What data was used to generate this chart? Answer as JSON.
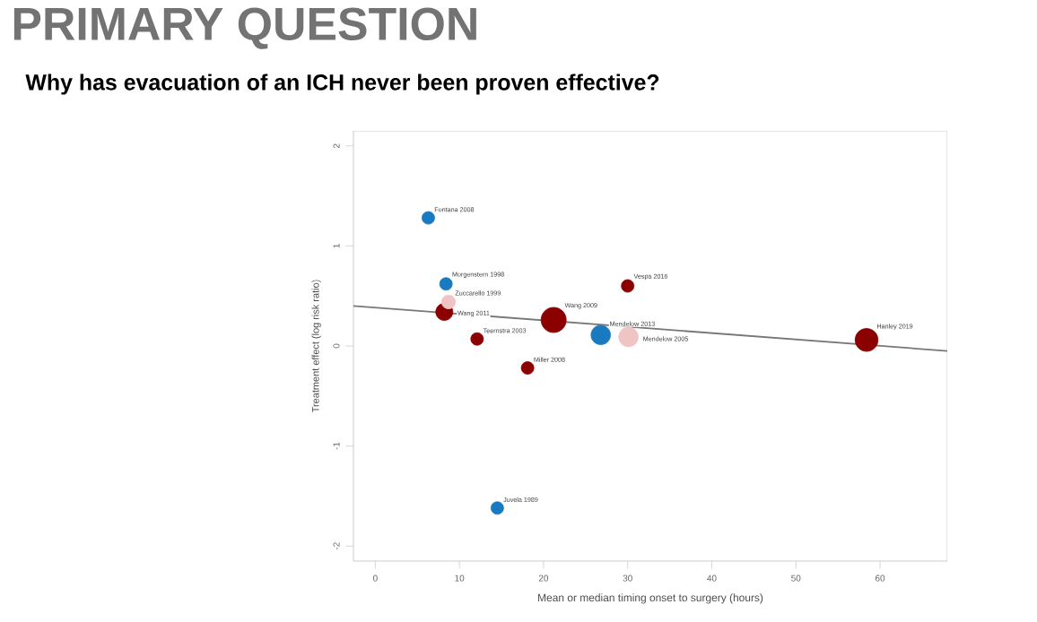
{
  "chart_data": {
    "type": "bubble",
    "title": "PRIMARY QUESTION",
    "subtitle": "Why has evacuation of an ICH never been proven effective?",
    "xlabel": "Mean or median timing onset to surgery (hours)",
    "ylabel": "Treatment effect (log risk ratio)",
    "xlim": [
      -2.6,
      68
    ],
    "ylim": [
      -2.15,
      2.15
    ],
    "xticks": [
      0,
      10,
      20,
      30,
      40,
      50,
      60
    ],
    "yticks": [
      -2,
      -1,
      0,
      1,
      2
    ],
    "series": [
      {
        "color": "#1a7abf",
        "x": [
          6.3,
          8.4,
          14.5,
          26.8
        ],
        "values": [
          1.28,
          0.62,
          -1.62,
          0.11
        ],
        "sizes": [
          0.25,
          0.25,
          0.25,
          0.6
        ]
      },
      {
        "color": "#8b0000",
        "x": [
          8.2,
          12.1,
          21.2,
          18.1,
          30.0,
          58.4
        ],
        "values": [
          0.34,
          0.07,
          0.26,
          -0.22,
          0.6,
          0.06
        ],
        "sizes": [
          0.46,
          0.25,
          1,
          0.25,
          0.25,
          0.83
        ]
      },
      {
        "color": "#f0c4c4",
        "x": [
          8.7,
          30.1
        ],
        "values": [
          0.44,
          0.09
        ],
        "sizes": [
          0.3,
          0.6
        ]
      },
      {
        "type": "line",
        "color": "#777777",
        "x": [
          -2.6,
          68
        ],
        "values": [
          0.4,
          -0.05
        ]
      }
    ],
    "annotations": [
      {
        "text": "Fontana 2008",
        "x": 6.3,
        "y": 1.28
      },
      {
        "text": "Morgenstern 1998",
        "x": 8.4,
        "y": 0.62
      },
      {
        "text": "Zuccarello 1999",
        "x": 8.7,
        "y": 0.44
      },
      {
        "text": "Wang 2011",
        "x": 8.2,
        "y": 0.34
      },
      {
        "text": "Teernstra 2003",
        "x": 12.1,
        "y": 0.07
      },
      {
        "text": "Wang 2009",
        "x": 21.2,
        "y": 0.26
      },
      {
        "text": "Miller 2008",
        "x": 18.1,
        "y": -0.22
      },
      {
        "text": "Juvela 1989",
        "x": 14.5,
        "y": -1.62
      },
      {
        "text": "Mendelow 2013",
        "x": 26.8,
        "y": 0.11
      },
      {
        "text": "Mendelow 2005",
        "x": 30.1,
        "y": 0.09
      },
      {
        "text": "Vespa 2016",
        "x": 30.0,
        "y": 0.6
      },
      {
        "text": "Hanley 2019",
        "x": 58.4,
        "y": 0.06
      }
    ]
  }
}
